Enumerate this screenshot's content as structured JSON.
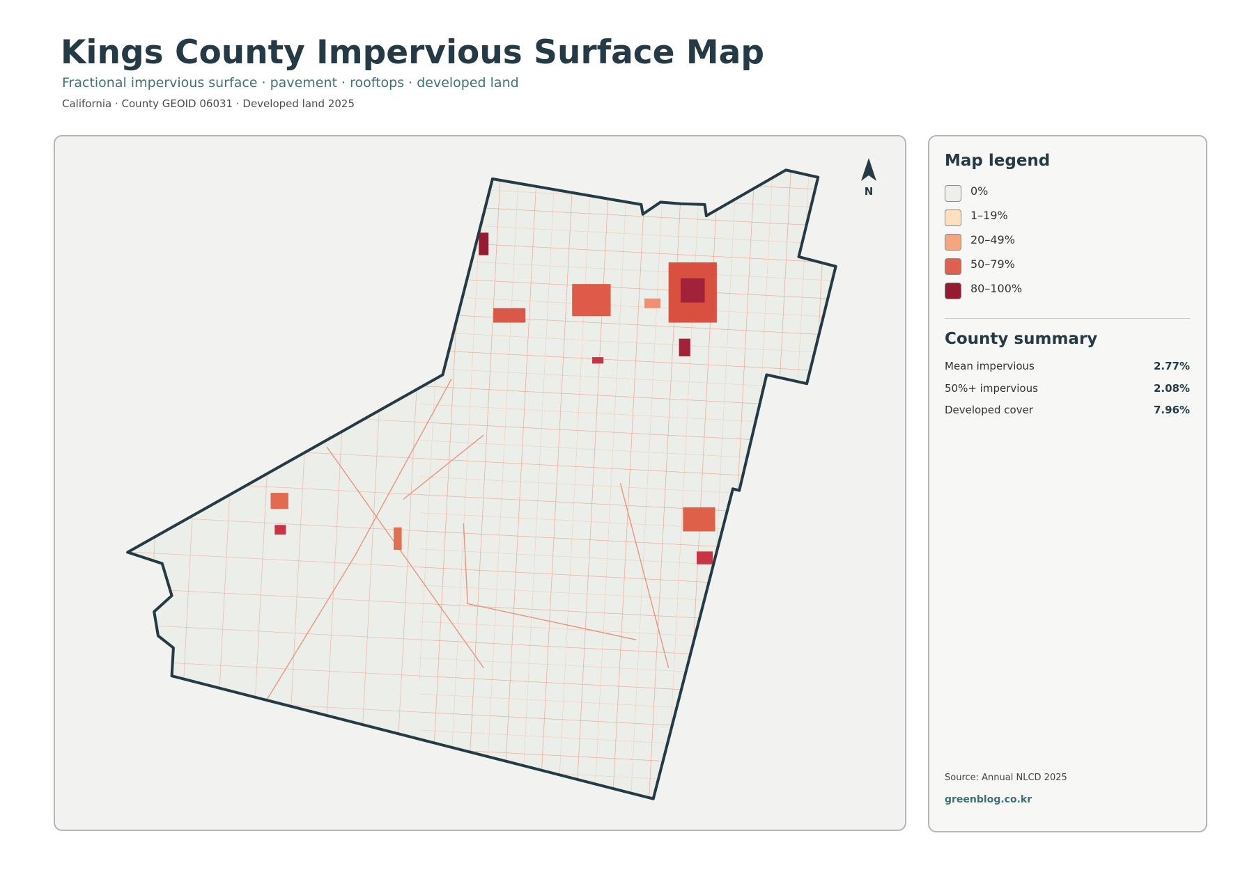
{
  "header": {
    "title": "Kings County Impervious Surface Map",
    "subtitle": "Fractional impervious surface · pavement · rooftops · developed land",
    "meta": "California · County GEOID 06031 · Developed land 2025"
  },
  "map": {
    "north_label": "N"
  },
  "legend": {
    "title": "Map legend",
    "items": [
      {
        "label": "0%",
        "color": "#efefea"
      },
      {
        "label": "1–19%",
        "color": "#fde0c0"
      },
      {
        "label": "20–49%",
        "color": "#f4a77e"
      },
      {
        "label": "50–79%",
        "color": "#e0604f"
      },
      {
        "label": "80–100%",
        "color": "#951b30"
      }
    ]
  },
  "summary": {
    "title": "County summary",
    "rows": [
      {
        "label": "Mean impervious",
        "value": "2.77%"
      },
      {
        "label": "50%+ impervious",
        "value": "2.08%"
      },
      {
        "label": "Developed cover",
        "value": "7.96%"
      }
    ]
  },
  "footer": {
    "source": "Source: Annual NLCD 2025",
    "site": "greenblog.co.kr"
  }
}
